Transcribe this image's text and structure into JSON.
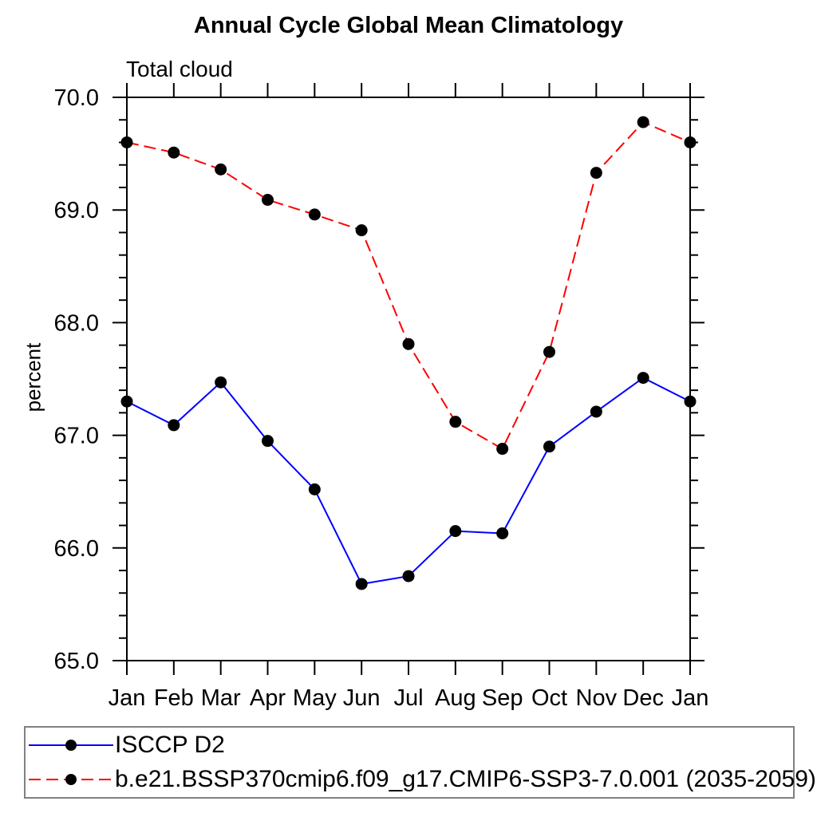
{
  "chart": {
    "title": "Annual Cycle Global Mean Climatology",
    "subtitle": "Total cloud",
    "ylabel": "percent"
  },
  "chart_data": {
    "type": "line",
    "title": "Annual Cycle Global Mean Climatology",
    "subtitle": "Total cloud",
    "xlabel": "",
    "ylabel": "percent",
    "categories": [
      "Jan",
      "Feb",
      "Mar",
      "Apr",
      "May",
      "Jun",
      "Jul",
      "Aug",
      "Sep",
      "Oct",
      "Nov",
      "Dec",
      "Jan"
    ],
    "ylim": [
      65.0,
      70.0
    ],
    "ytick_labels": [
      "65.0",
      "66.0",
      "67.0",
      "68.0",
      "69.0",
      "70.0"
    ],
    "ytick_major_step": 1.0,
    "ytick_minor_step": 0.2,
    "grid": false,
    "legend_position": "bottom-left-box",
    "series": [
      {
        "name": "ISCCP D2",
        "color": "#0000ff",
        "line_style": "solid",
        "marker": "filled-circle",
        "marker_color": "#000000",
        "values": [
          67.3,
          67.09,
          67.47,
          66.95,
          66.52,
          65.68,
          65.75,
          66.15,
          66.13,
          66.9,
          67.21,
          67.51,
          67.3
        ]
      },
      {
        "name": "b.e21.BSSP370cmip6.f09_g17.CMIP6-SSP3-7.0.001 (2035-2059)",
        "color": "#ff0000",
        "line_style": "dashed",
        "marker": "filled-circle",
        "marker_color": "#000000",
        "values": [
          69.6,
          69.51,
          69.36,
          69.09,
          68.96,
          68.82,
          67.81,
          67.12,
          66.88,
          67.74,
          69.33,
          69.78,
          69.6
        ]
      }
    ]
  },
  "colors": {
    "axis": "#000000",
    "text": "#000000",
    "background": "#ffffff",
    "legend_border": "#808080"
  }
}
